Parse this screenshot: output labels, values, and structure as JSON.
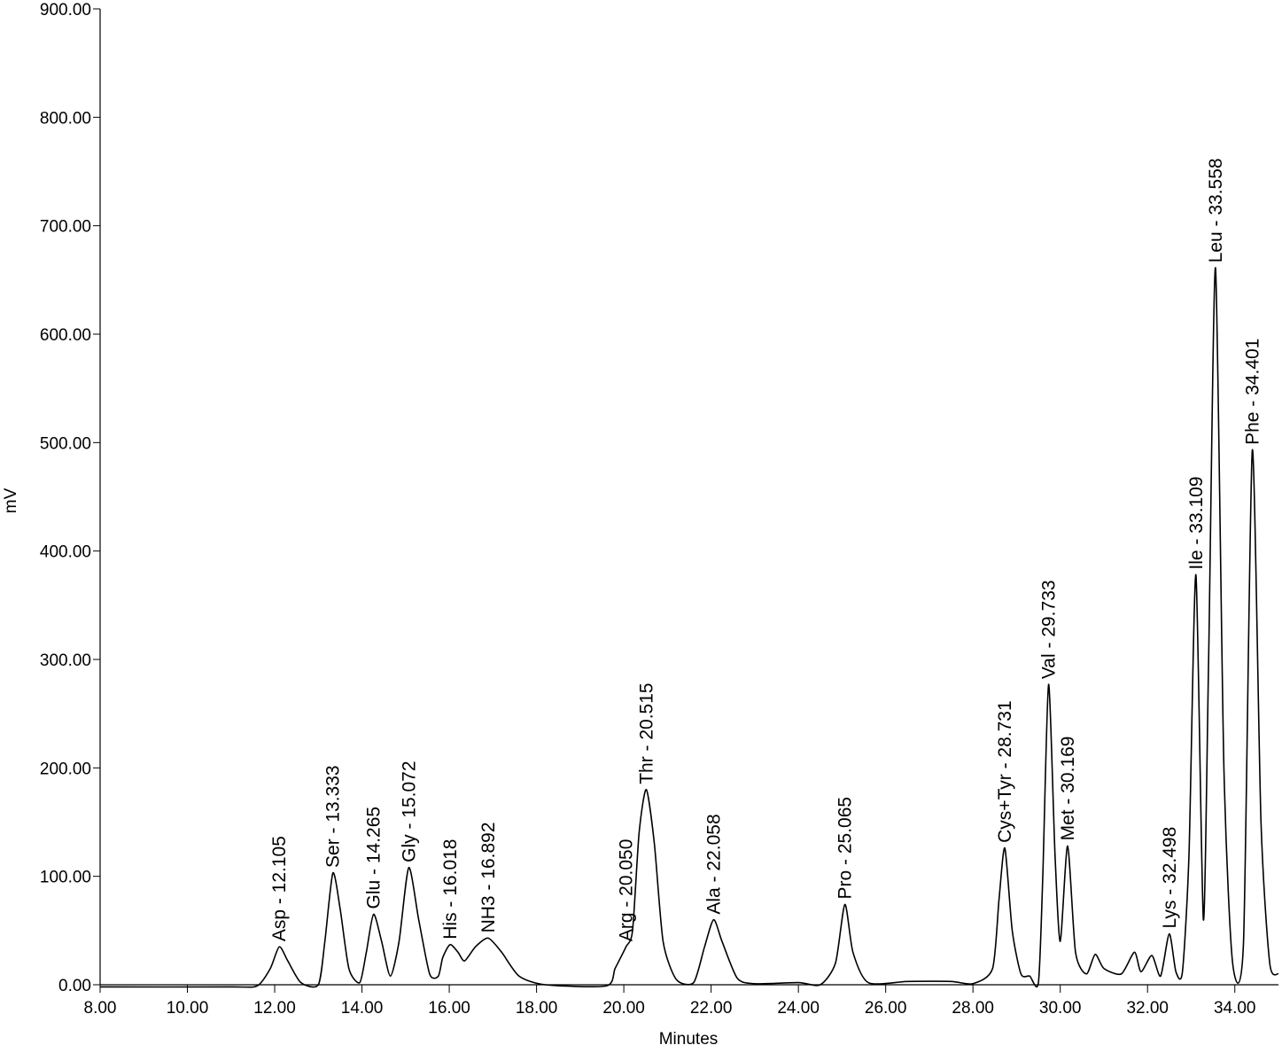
{
  "chart_data": {
    "type": "line",
    "xlabel": "Minutes",
    "ylabel": "mV",
    "xlim": [
      8,
      35
    ],
    "ylim": [
      0,
      900
    ],
    "xticks": [
      {
        "value": 8,
        "label": "8.00"
      },
      {
        "value": 10,
        "label": "10.00"
      },
      {
        "value": 12,
        "label": "12.00"
      },
      {
        "value": 14,
        "label": "14.00"
      },
      {
        "value": 16,
        "label": "16.00"
      },
      {
        "value": 18,
        "label": "18.00"
      },
      {
        "value": 20,
        "label": "20.00"
      },
      {
        "value": 22,
        "label": "22.00"
      },
      {
        "value": 24,
        "label": "24.00"
      },
      {
        "value": 26,
        "label": "26.00"
      },
      {
        "value": 28,
        "label": "28.00"
      },
      {
        "value": 30,
        "label": "30.00"
      },
      {
        "value": 32,
        "label": "32.00"
      },
      {
        "value": 34,
        "label": "34.00"
      }
    ],
    "yticks": [
      {
        "value": 0,
        "label": "0.00"
      },
      {
        "value": 100,
        "label": "100.00"
      },
      {
        "value": 200,
        "label": "200.00"
      },
      {
        "value": 300,
        "label": "300.00"
      },
      {
        "value": 400,
        "label": "400.00"
      },
      {
        "value": 500,
        "label": "500.00"
      },
      {
        "value": 600,
        "label": "600.00"
      },
      {
        "value": 700,
        "label": "700.00"
      },
      {
        "value": 800,
        "label": "800.00"
      },
      {
        "value": 900,
        "label": "900.00"
      }
    ],
    "color": "#000000",
    "x": [
      8,
      11,
      11.6,
      11.9,
      12.105,
      12.3,
      12.6,
      13.0,
      13.15,
      13.333,
      13.5,
      13.7,
      13.95,
      14.1,
      14.265,
      14.45,
      14.65,
      14.85,
      15.072,
      15.3,
      15.55,
      15.75,
      15.85,
      16.018,
      16.2,
      16.35,
      16.6,
      16.892,
      17.2,
      17.6,
      18.2,
      19.6,
      19.8,
      20.05,
      20.2,
      20.35,
      20.515,
      20.7,
      20.9,
      21.2,
      21.6,
      21.85,
      22.058,
      22.25,
      22.6,
      23.0,
      24.0,
      24.5,
      24.85,
      25.065,
      25.25,
      25.6,
      26.5,
      27.5,
      28.0,
      28.45,
      28.6,
      28.731,
      28.9,
      29.1,
      29.3,
      29.5,
      29.6,
      29.733,
      29.88,
      30.0,
      30.169,
      30.35,
      30.6,
      30.8,
      31.0,
      31.4,
      31.7,
      31.85,
      32.1,
      32.3,
      32.498,
      32.65,
      32.8,
      32.95,
      33.109,
      33.28,
      33.4,
      33.558,
      33.75,
      33.95,
      34.2,
      34.401,
      34.6,
      34.8,
      35
    ],
    "values": [
      -2,
      -2,
      -1,
      15,
      35,
      22,
      2,
      0,
      40,
      103,
      70,
      15,
      2,
      30,
      65,
      40,
      8,
      40,
      108,
      60,
      10,
      8,
      25,
      37,
      30,
      22,
      35,
      43,
      30,
      8,
      0,
      -1,
      15,
      35,
      50,
      140,
      180,
      130,
      40,
      5,
      2,
      35,
      60,
      40,
      6,
      1,
      2,
      0,
      20,
      74,
      30,
      2,
      3,
      3,
      1,
      15,
      80,
      126,
      50,
      10,
      8,
      2,
      100,
      277,
      120,
      40,
      128,
      30,
      10,
      28,
      15,
      10,
      30,
      12,
      27,
      8,
      47,
      12,
      12,
      120,
      378,
      60,
      300,
      661,
      200,
      20,
      40,
      493,
      150,
      20,
      10
    ],
    "peaks": [
      {
        "label": "Asp - 12.105",
        "x": 12.105,
        "y": 35
      },
      {
        "label": "Ser - 13.333",
        "x": 13.333,
        "y": 103
      },
      {
        "label": "Glu - 14.265",
        "x": 14.265,
        "y": 65
      },
      {
        "label": "Gly - 15.072",
        "x": 15.072,
        "y": 108
      },
      {
        "label": "His - 16.018",
        "x": 16.018,
        "y": 37
      },
      {
        "label": "NH3 - 16.892",
        "x": 16.892,
        "y": 43
      },
      {
        "label": "Arg - 20.050",
        "x": 20.05,
        "y": 35
      },
      {
        "label": "Thr - 20.515",
        "x": 20.515,
        "y": 180
      },
      {
        "label": "Ala - 22.058",
        "x": 22.058,
        "y": 60
      },
      {
        "label": "Pro - 25.065",
        "x": 25.065,
        "y": 74
      },
      {
        "label": "Cys+Tyr - 28.731",
        "x": 28.731,
        "y": 126
      },
      {
        "label": "Val - 29.733",
        "x": 29.733,
        "y": 277
      },
      {
        "label": "Met - 30.169",
        "x": 30.169,
        "y": 128
      },
      {
        "label": "Lys - 32.498",
        "x": 32.498,
        "y": 47
      },
      {
        "label": "Ile - 33.109",
        "x": 33.109,
        "y": 378
      },
      {
        "label": "Leu - 33.558",
        "x": 33.558,
        "y": 661
      },
      {
        "label": "Phe - 34.401",
        "x": 34.401,
        "y": 493
      }
    ]
  }
}
